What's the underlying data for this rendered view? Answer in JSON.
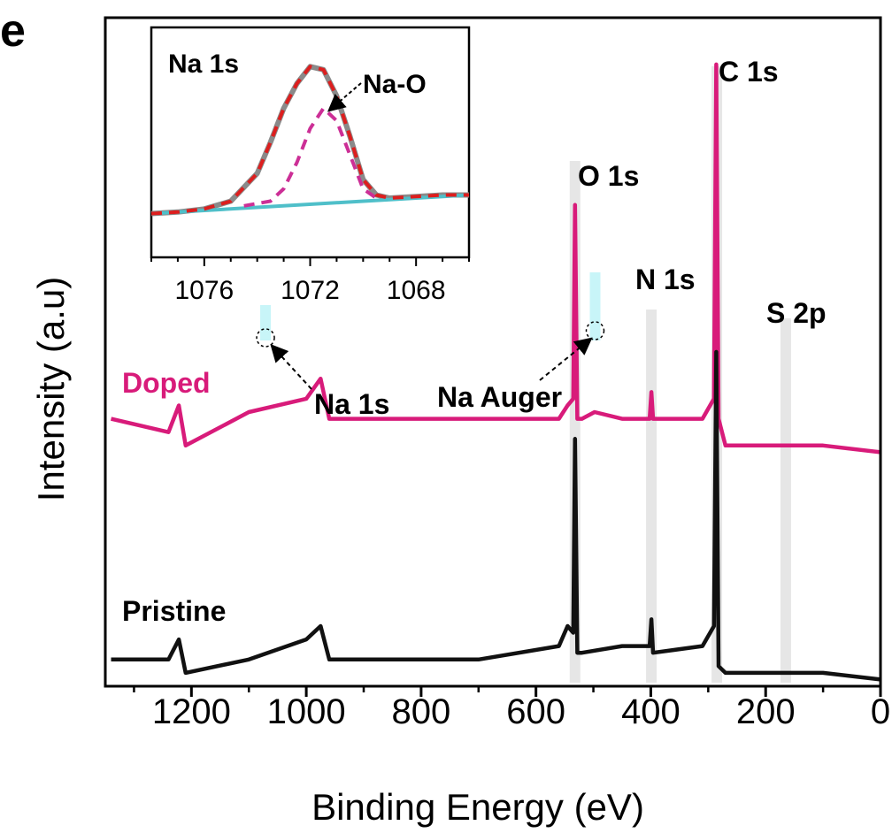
{
  "panel_label": "e",
  "colors": {
    "doped": "#d81b7a",
    "pristine": "#111111",
    "band_gray": "#e6e6e6",
    "band_cyan": "#c8f5f8",
    "inset_raw": "#8a8a8a",
    "inset_fit": "#dd1e1e",
    "inset_component": "#cc2f96",
    "inset_baseline": "#4fbfc9"
  },
  "chart_data": [
    {
      "type": "line",
      "title": "",
      "xlabel": "Binding Energy (eV)",
      "ylabel": "Intensity (a.u)",
      "xlim": [
        1350,
        0
      ],
      "x_reversed": true,
      "xticks": [
        1200,
        1000,
        800,
        600,
        400,
        200,
        0
      ],
      "y_ticks_shown": false,
      "series": [
        {
          "name": "Doped",
          "x": [
            1340,
            1240,
            1222,
            1210,
            1100,
            1000,
            975,
            960,
            700,
            560,
            545,
            535,
            532,
            528,
            520,
            498,
            450,
            402,
            399,
            396,
            310,
            290,
            286,
            282,
            270,
            230,
            168,
            100,
            0
          ],
          "y": [
            0.4,
            0.38,
            0.42,
            0.36,
            0.41,
            0.43,
            0.46,
            0.4,
            0.4,
            0.4,
            0.42,
            0.43,
            0.72,
            0.4,
            0.4,
            0.41,
            0.4,
            0.4,
            0.44,
            0.4,
            0.4,
            0.43,
            0.93,
            0.4,
            0.36,
            0.36,
            0.36,
            0.36,
            0.35
          ]
        },
        {
          "name": "Pristine",
          "x": [
            1340,
            1240,
            1222,
            1210,
            1100,
            1000,
            975,
            960,
            700,
            560,
            545,
            535,
            532,
            528,
            520,
            450,
            402,
            399,
            396,
            310,
            290,
            286,
            282,
            270,
            230,
            168,
            150,
            100,
            0
          ],
          "y": [
            0.04,
            0.04,
            0.07,
            0.02,
            0.04,
            0.07,
            0.09,
            0.04,
            0.04,
            0.06,
            0.09,
            0.08,
            0.37,
            0.05,
            0.05,
            0.06,
            0.06,
            0.1,
            0.05,
            0.06,
            0.09,
            0.5,
            0.03,
            0.02,
            0.02,
            0.02,
            0.02,
            0.02,
            0.01
          ]
        }
      ],
      "highlight_bands": [
        {
          "center": 532,
          "color": "gray"
        },
        {
          "center": 399,
          "color": "gray"
        },
        {
          "center": 285,
          "color": "gray"
        },
        {
          "center": 165,
          "color": "gray"
        },
        {
          "center": 1071,
          "color": "cyan"
        },
        {
          "center": 497,
          "color": "cyan"
        }
      ],
      "annotations": [
        {
          "text": "C 1s",
          "x": 285
        },
        {
          "text": "O 1s",
          "x": 532
        },
        {
          "text": "N 1s",
          "x": 399
        },
        {
          "text": "S 2p",
          "x": 165
        },
        {
          "text": "Na 1s",
          "x": 1071
        },
        {
          "text": "Na Auger",
          "x": 497
        }
      ],
      "series_labels": [
        {
          "text": "Doped",
          "series": "Doped"
        },
        {
          "text": "Pristine",
          "series": "Pristine"
        }
      ]
    },
    {
      "type": "line",
      "title": "Na 1s",
      "xlabel": "",
      "ylabel": "",
      "xlim": [
        1078,
        1066
      ],
      "x_reversed": true,
      "xticks": [
        1076,
        1072,
        1068
      ],
      "annotation": "Na-O",
      "series": [
        {
          "role": "raw",
          "x": [
            1078,
            1077,
            1076,
            1075,
            1074,
            1073.5,
            1073,
            1072.5,
            1072,
            1071.5,
            1071,
            1070.5,
            1070,
            1069.5,
            1069,
            1068,
            1067,
            1066
          ],
          "y": [
            0.02,
            0.03,
            0.05,
            0.1,
            0.28,
            0.48,
            0.7,
            0.86,
            0.97,
            0.95,
            0.78,
            0.52,
            0.24,
            0.14,
            0.12,
            0.13,
            0.14,
            0.14
          ]
        },
        {
          "role": "fit",
          "x": [
            1078,
            1077,
            1076,
            1075,
            1074,
            1073.5,
            1073,
            1072.5,
            1072,
            1071.5,
            1071,
            1070.5,
            1070,
            1069.5,
            1069,
            1068,
            1067,
            1066
          ],
          "y": [
            0.02,
            0.03,
            0.05,
            0.1,
            0.28,
            0.48,
            0.7,
            0.86,
            0.97,
            0.95,
            0.78,
            0.52,
            0.24,
            0.14,
            0.12,
            0.13,
            0.14,
            0.14
          ]
        },
        {
          "role": "component",
          "x": [
            1074.5,
            1073.5,
            1073,
            1072.5,
            1072,
            1071.5,
            1071,
            1070.5,
            1070,
            1069.5
          ],
          "y": [
            0.07,
            0.1,
            0.18,
            0.35,
            0.57,
            0.7,
            0.62,
            0.4,
            0.18,
            0.12
          ]
        },
        {
          "role": "baseline",
          "x": [
            1078,
            1066
          ],
          "y": [
            0.02,
            0.14
          ]
        }
      ]
    }
  ]
}
